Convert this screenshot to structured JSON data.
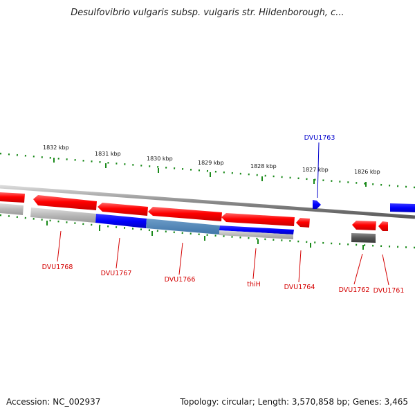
{
  "title": "Desulfovibrio vulgaris subsp. vulgaris str. Hildenborough, c...",
  "kbp_labels": [
    "1832 kbp",
    "1831 kbp",
    "1830 kbp",
    "1829 kbp",
    "1828 kbp",
    "1827 kbp",
    "1826 kbp"
  ],
  "genes": [
    {
      "label": "DVU1768",
      "strand": "minus",
      "color": "#d40000"
    },
    {
      "label": "DVU1767",
      "strand": "minus",
      "color": "#d40000"
    },
    {
      "label": "DVU1766",
      "strand": "minus",
      "color": "#d40000"
    },
    {
      "label": "thiH",
      "strand": "minus",
      "color": "#d40000"
    },
    {
      "label": "DVU1764",
      "strand": "minus",
      "color": "#d40000"
    },
    {
      "label": "DVU1763",
      "strand": "plus",
      "color": "#0000cc"
    },
    {
      "label": "DVU1762",
      "strand": "minus",
      "color": "#d40000"
    },
    {
      "label": "DVU1761",
      "strand": "minus",
      "color": "#d40000"
    }
  ],
  "colors": {
    "backbone": "#808080",
    "tick_marks": "#1a8a1a",
    "gene_minus": "#ff0000",
    "gene_plus": "#0000ff",
    "feature_blue": "#0000e0",
    "feature_steel": "#4682b4",
    "feature_gray": "#b8b8b8",
    "feature_dark": "#555555"
  },
  "footer": {
    "accession": "Accession: NC_002937",
    "summary": "Topology: circular; Length: 3,570,858 bp; Genes: 3,465"
  }
}
